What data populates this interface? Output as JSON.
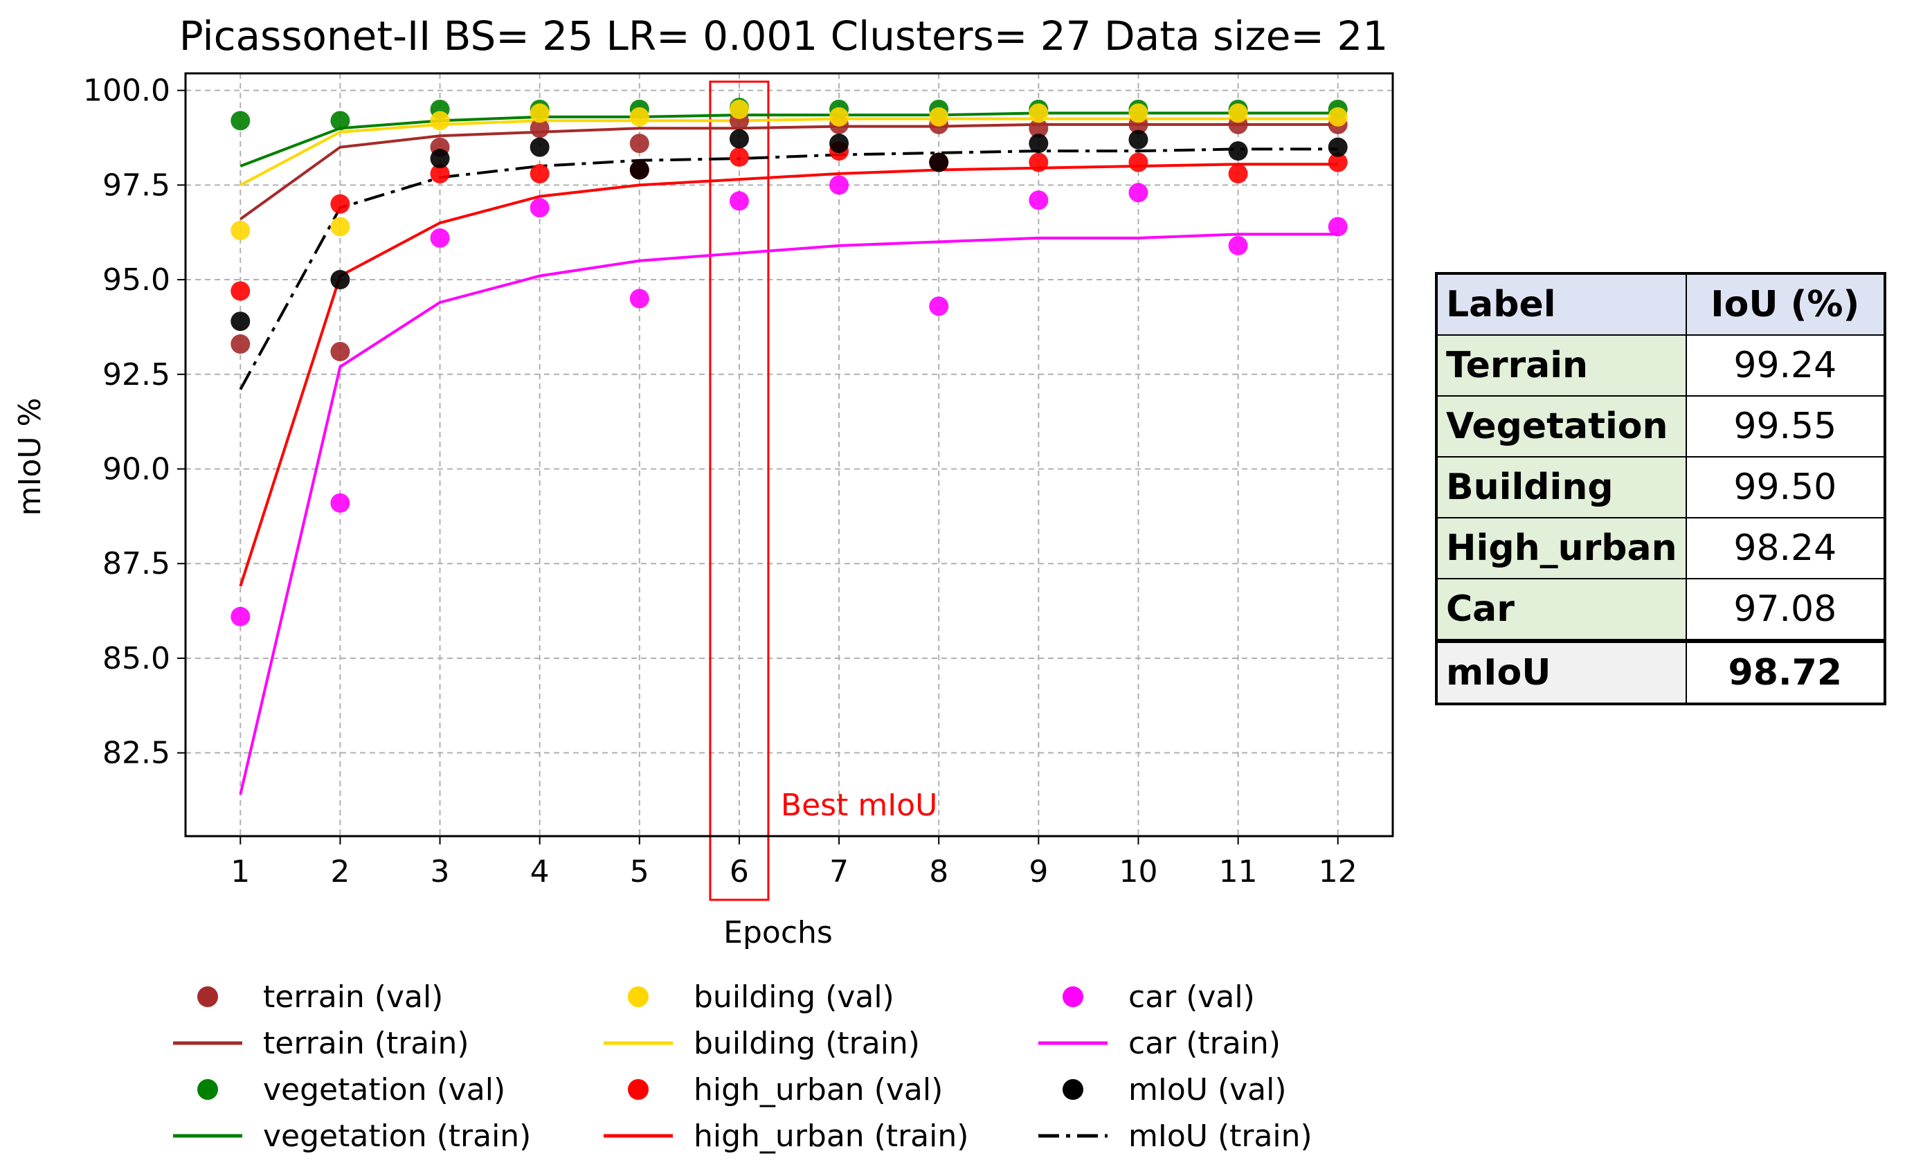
{
  "chart_data": {
    "type": "line",
    "title": "Picassonet-II BS= 25 LR= 0.001 Clusters= 27 Data size= 21",
    "xlabel": "Epochs",
    "ylabel": "mIoU %",
    "x": [
      1,
      2,
      3,
      4,
      5,
      6,
      7,
      8,
      9,
      10,
      11,
      12
    ],
    "xticks": [
      "1",
      "2",
      "3",
      "4",
      "5",
      "6",
      "7",
      "8",
      "9",
      "10",
      "11",
      "12"
    ],
    "xlim": [
      0.45,
      12.55
    ],
    "yticks": [
      "82.5",
      "85.0",
      "87.5",
      "90.0",
      "92.5",
      "95.0",
      "97.5",
      "100.0"
    ],
    "ytick_values": [
      82.5,
      85.0,
      87.5,
      90.0,
      92.5,
      95.0,
      97.5,
      100.0
    ],
    "ylim": [
      80.3,
      100.45
    ],
    "grid": true,
    "legend_position": "below",
    "highlight": {
      "x": 6,
      "label": "Best mIoU",
      "color": "#ff0000"
    },
    "series": [
      {
        "name": "terrain (val)",
        "kind": "scatter",
        "color": "#a52a2a",
        "values": [
          93.3,
          93.1,
          98.5,
          99.0,
          98.6,
          99.2,
          99.1,
          99.1,
          99.0,
          99.1,
          99.1,
          99.1
        ]
      },
      {
        "name": "terrain (train)",
        "kind": "line",
        "style": "solid",
        "color": "#a52a2a",
        "values": [
          96.6,
          98.5,
          98.8,
          98.9,
          99.0,
          99.0,
          99.05,
          99.05,
          99.1,
          99.1,
          99.1,
          99.1
        ]
      },
      {
        "name": "vegetation (val)",
        "kind": "scatter",
        "color": "#008000",
        "values": [
          99.2,
          99.2,
          99.5,
          99.5,
          99.5,
          99.55,
          99.5,
          99.5,
          99.5,
          99.5,
          99.5,
          99.5
        ]
      },
      {
        "name": "vegetation (train)",
        "kind": "line",
        "style": "solid",
        "color": "#008000",
        "values": [
          98.0,
          99.0,
          99.2,
          99.3,
          99.3,
          99.35,
          99.35,
          99.35,
          99.4,
          99.4,
          99.4,
          99.4
        ]
      },
      {
        "name": "building (val)",
        "kind": "scatter",
        "color": "#ffd700",
        "values": [
          96.3,
          96.4,
          99.2,
          99.4,
          99.3,
          99.5,
          99.3,
          99.3,
          99.4,
          99.4,
          99.4,
          99.3
        ]
      },
      {
        "name": "building (train)",
        "kind": "line",
        "style": "solid",
        "color": "#ffd700",
        "values": [
          97.5,
          98.9,
          99.1,
          99.2,
          99.2,
          99.2,
          99.25,
          99.25,
          99.25,
          99.25,
          99.25,
          99.25
        ]
      },
      {
        "name": "high_urban (val)",
        "kind": "scatter",
        "color": "#ff0000",
        "values": [
          94.7,
          97.0,
          97.8,
          97.8,
          97.9,
          98.24,
          98.4,
          98.1,
          98.1,
          98.1,
          97.8,
          98.1
        ]
      },
      {
        "name": "high_urban (train)",
        "kind": "line",
        "style": "solid",
        "color": "#ff0000",
        "values": [
          86.9,
          95.1,
          96.5,
          97.2,
          97.5,
          97.65,
          97.8,
          97.9,
          97.95,
          98.0,
          98.05,
          98.05
        ]
      },
      {
        "name": "car (val)",
        "kind": "scatter",
        "color": "#ff00ff",
        "values": [
          86.1,
          89.1,
          96.1,
          96.9,
          94.5,
          97.08,
          97.5,
          94.3,
          97.1,
          97.3,
          95.9,
          96.4
        ]
      },
      {
        "name": "car (train)",
        "kind": "line",
        "style": "solid",
        "color": "#ff00ff",
        "values": [
          81.4,
          92.7,
          94.4,
          95.1,
          95.5,
          95.7,
          95.9,
          96.0,
          96.1,
          96.1,
          96.2,
          96.2
        ]
      },
      {
        "name": "mIoU (val)",
        "kind": "scatter",
        "color": "#000000",
        "values": [
          93.9,
          95.0,
          98.2,
          98.5,
          97.9,
          98.72,
          98.6,
          98.1,
          98.6,
          98.7,
          98.4,
          98.5
        ]
      },
      {
        "name": "mIoU (train)",
        "kind": "line",
        "style": "dashdot",
        "color": "#000000",
        "values": [
          92.1,
          96.9,
          97.7,
          98.0,
          98.15,
          98.2,
          98.3,
          98.35,
          98.4,
          98.4,
          98.45,
          98.45
        ]
      }
    ]
  },
  "table": {
    "header": [
      "Label",
      "IoU (%)"
    ],
    "rows": [
      {
        "label": "Terrain",
        "value": "99.24"
      },
      {
        "label": "Vegetation",
        "value": "99.55"
      },
      {
        "label": "Building",
        "value": "99.50"
      },
      {
        "label": "High_urban",
        "value": "98.24"
      },
      {
        "label": "Car",
        "value": "97.08"
      }
    ],
    "summary": {
      "label": "mIoU",
      "value": "98.72"
    }
  }
}
